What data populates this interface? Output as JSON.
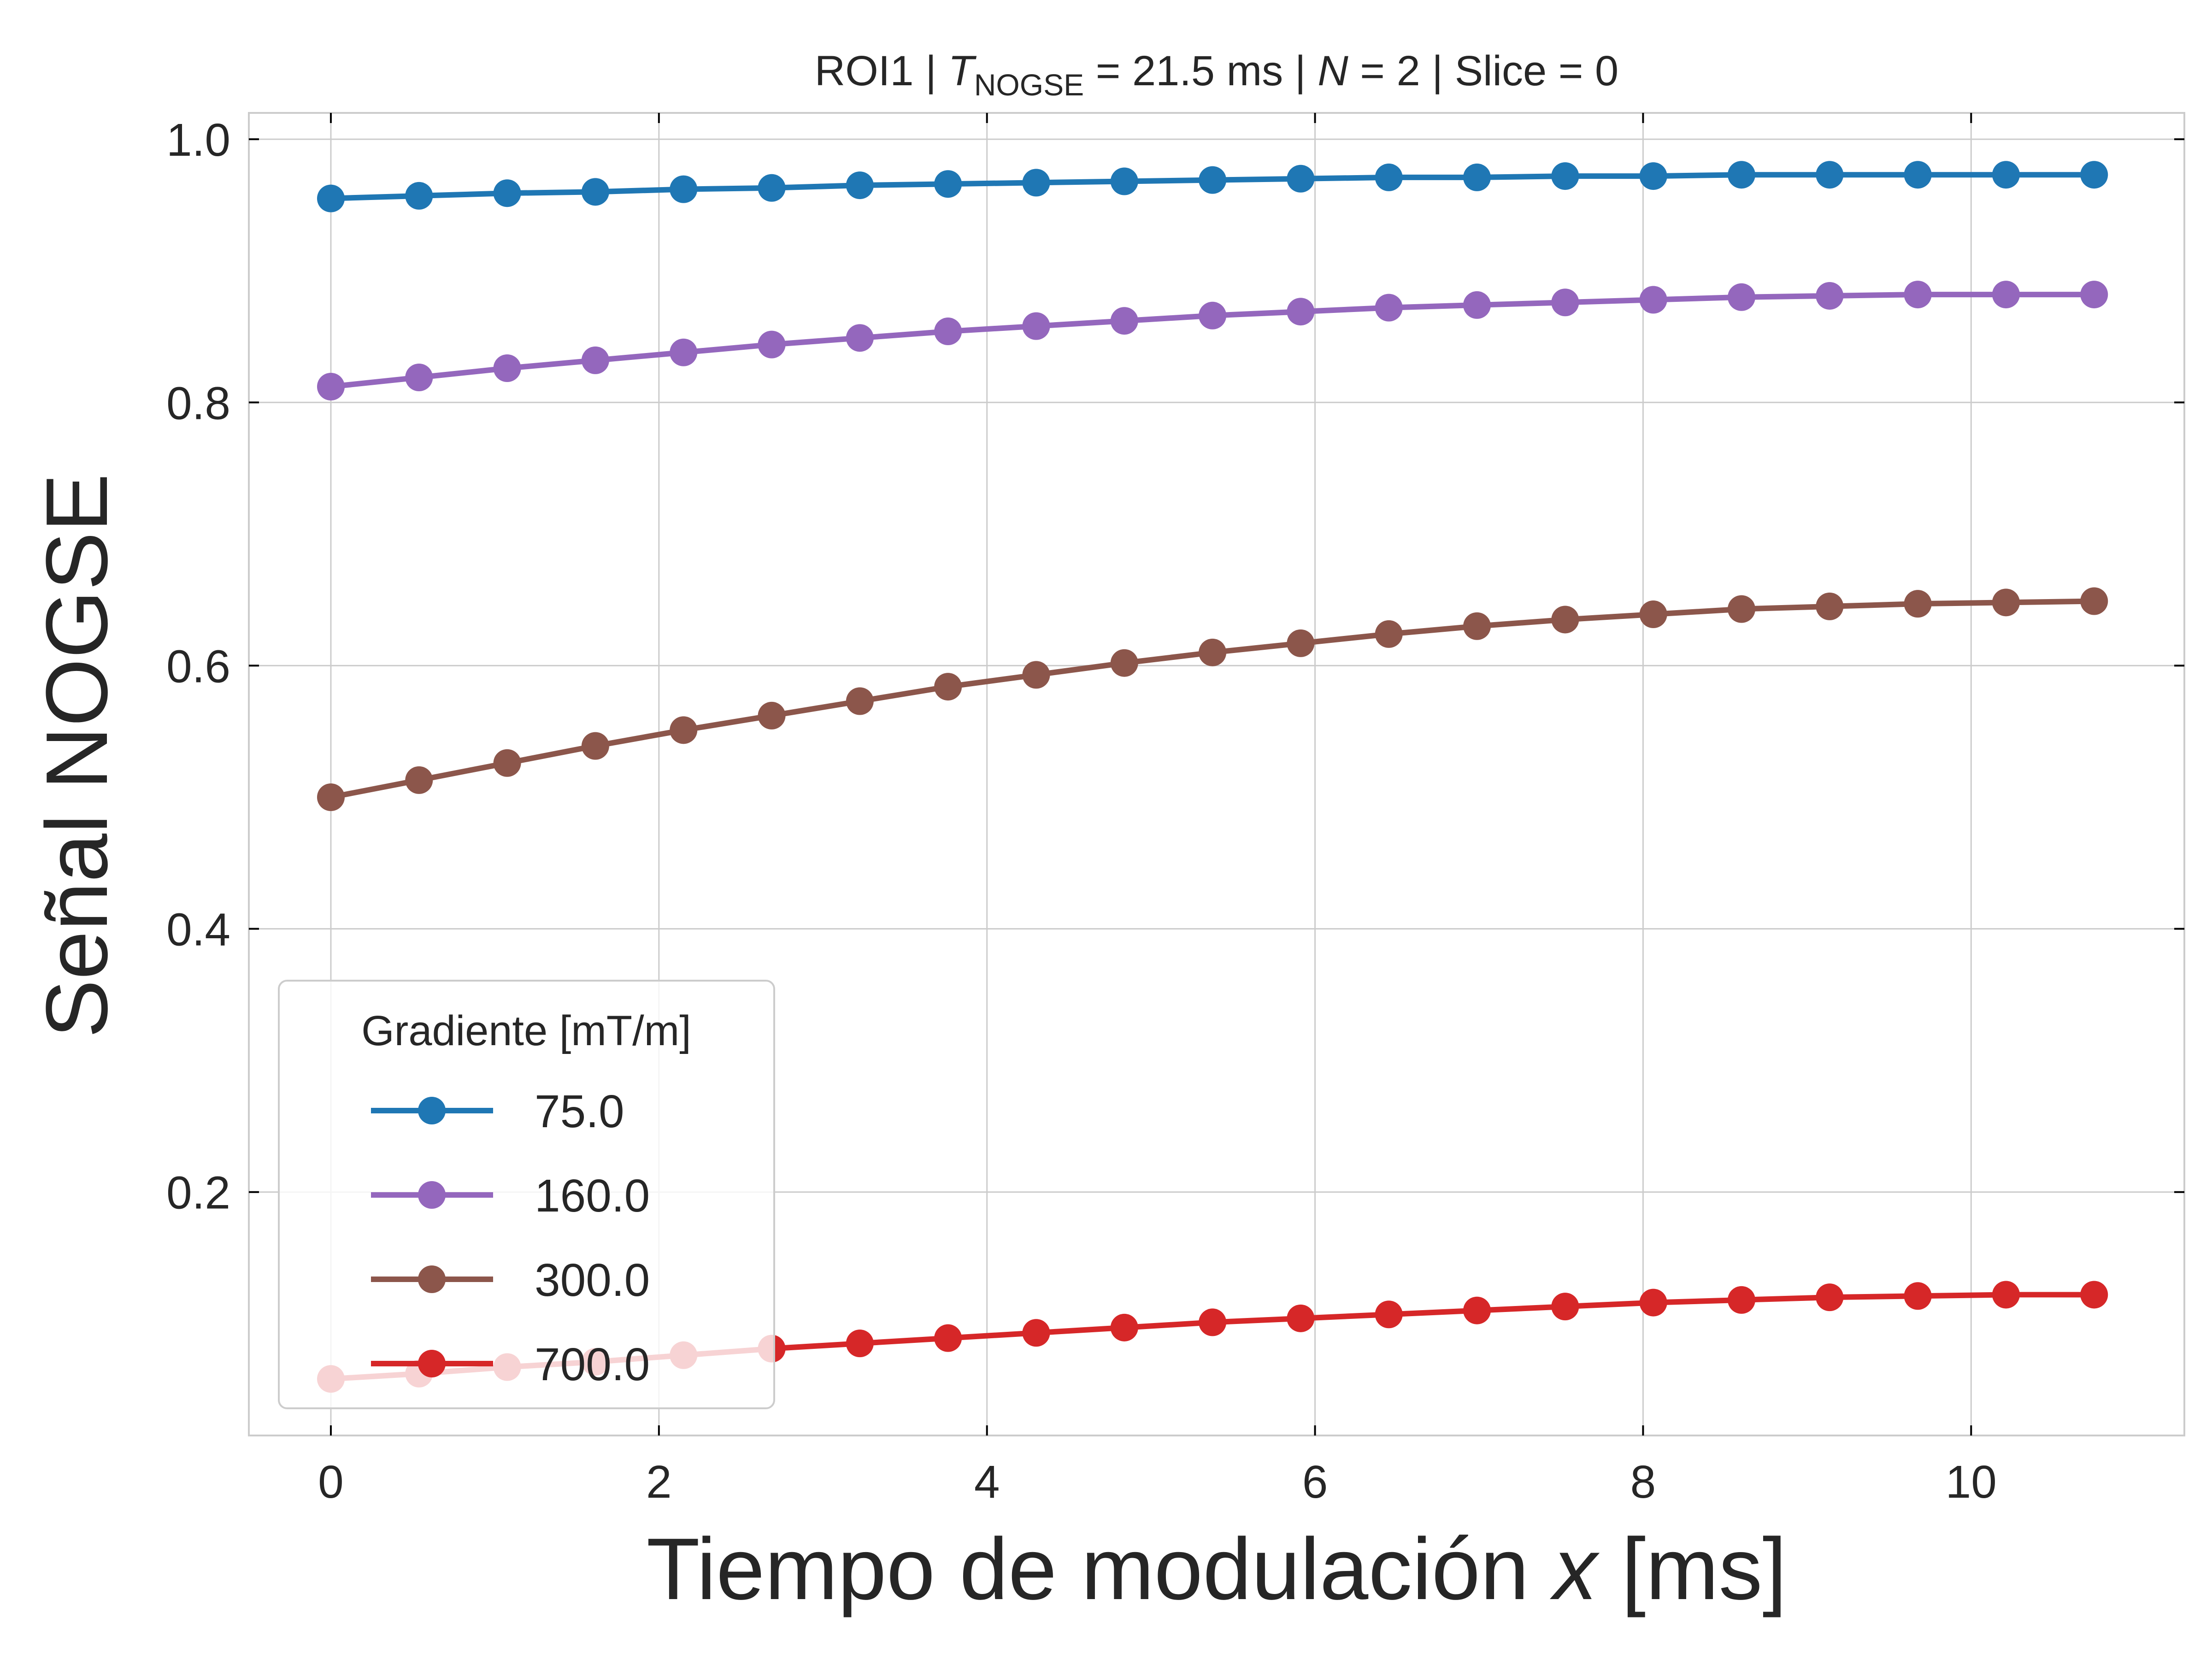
{
  "chart_data": {
    "type": "line",
    "title": {
      "prefix": "ROI1 | ",
      "t_symbol": "T",
      "t_subscript": "NOGSE",
      "t_value": " = 21.5 ms | ",
      "n_symbol": "N",
      "n_value": " = 2 | Slice = 0"
    },
    "xlabel": {
      "text": "Tiempo de modulación ",
      "var": "x",
      "unit": " [ms]"
    },
    "ylabel": "Señal NOGSE",
    "xlim": [
      -0.5,
      11.3
    ],
    "ylim": [
      0.015,
      1.02
    ],
    "xticks": [
      0,
      2,
      4,
      6,
      8,
      10
    ],
    "xtick_labels": [
      "0",
      "2",
      "4",
      "6",
      "8",
      "10"
    ],
    "yticks": [
      0.2,
      0.4,
      0.6,
      0.8,
      1.0
    ],
    "ytick_labels": [
      "0.2",
      "0.4",
      "0.6",
      "0.8",
      "1.0"
    ],
    "grid": true,
    "legend": {
      "title": "Gradiente [mT/m]",
      "position": "lower-left"
    },
    "x": [
      0,
      0.5375,
      1.075,
      1.6125,
      2.15,
      2.6875,
      3.225,
      3.7625,
      4.3,
      4.8375,
      5.375,
      5.9125,
      6.45,
      6.9875,
      7.525,
      8.0625,
      8.6,
      9.1375,
      9.675,
      10.2125,
      10.75
    ],
    "series": [
      {
        "name": "75.0",
        "color": "#1f77b4",
        "values": [
          0.955,
          0.957,
          0.959,
          0.96,
          0.962,
          0.963,
          0.965,
          0.966,
          0.967,
          0.968,
          0.969,
          0.97,
          0.971,
          0.971,
          0.972,
          0.972,
          0.973,
          0.973,
          0.973,
          0.973,
          0.973
        ]
      },
      {
        "name": "160.0",
        "color": "#9467bd",
        "values": [
          0.812,
          0.819,
          0.826,
          0.832,
          0.838,
          0.844,
          0.849,
          0.854,
          0.858,
          0.862,
          0.866,
          0.869,
          0.872,
          0.874,
          0.876,
          0.878,
          0.88,
          0.881,
          0.882,
          0.882,
          0.882
        ]
      },
      {
        "name": "300.0",
        "color": "#8c564b",
        "values": [
          0.5,
          0.513,
          0.526,
          0.539,
          0.551,
          0.562,
          0.573,
          0.584,
          0.593,
          0.602,
          0.61,
          0.617,
          0.624,
          0.63,
          0.635,
          0.639,
          0.643,
          0.645,
          0.647,
          0.648,
          0.649
        ]
      },
      {
        "name": "700.0",
        "color": "#d62728",
        "values": [
          0.058,
          0.062,
          0.067,
          0.071,
          0.076,
          0.081,
          0.085,
          0.089,
          0.093,
          0.097,
          0.101,
          0.104,
          0.107,
          0.11,
          0.113,
          0.116,
          0.118,
          0.12,
          0.121,
          0.122,
          0.122
        ]
      }
    ]
  }
}
